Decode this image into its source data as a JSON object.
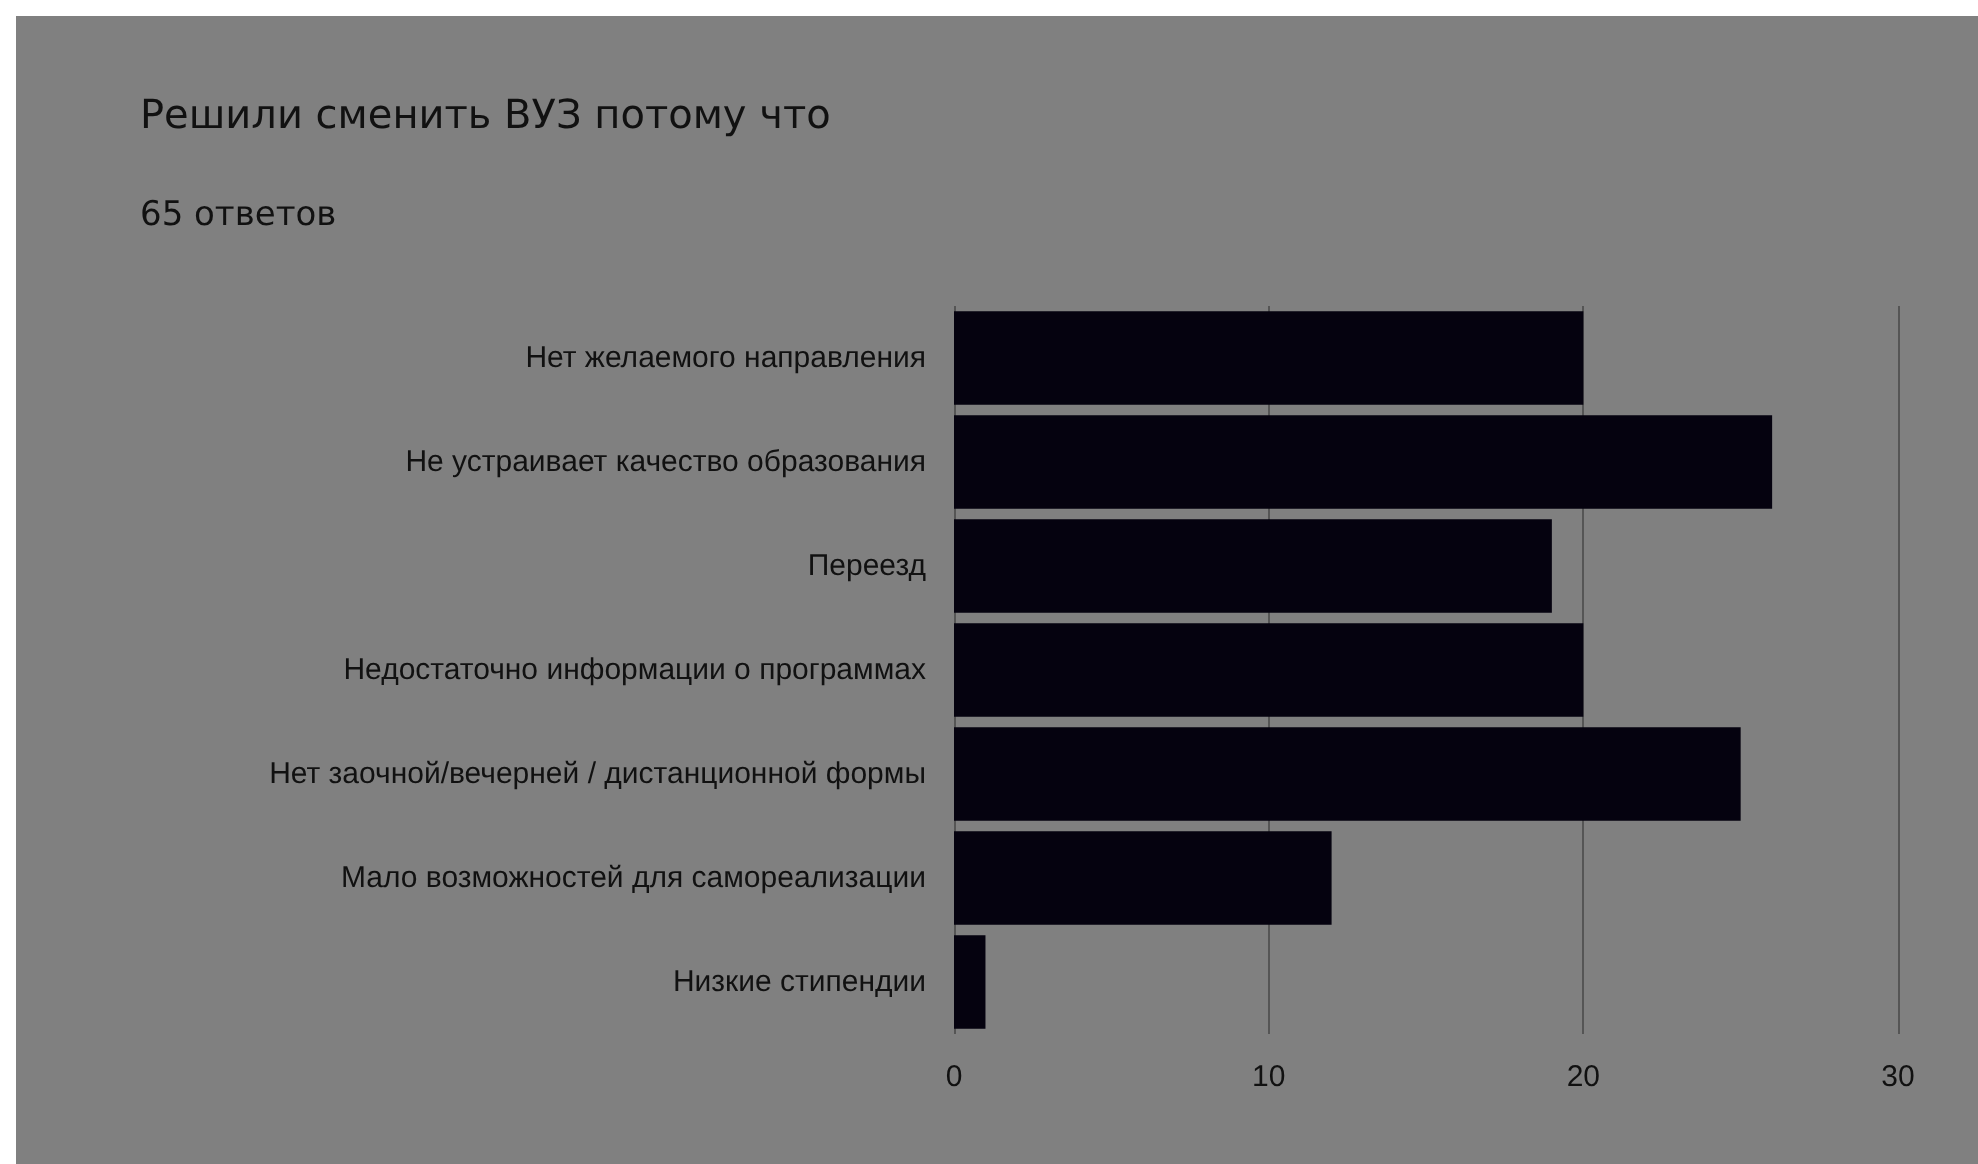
{
  "chart_data": {
    "type": "bar",
    "orientation": "horizontal",
    "title": "Решили сменить ВУЗ потому что",
    "subtitle": "65 ответов",
    "categories": [
      "Нет желаемого направления",
      "Не устраивает качество образования",
      "Переезд",
      "Недостаточно информации о программах",
      "Нет заочной/вечерней / дистанционной формы",
      "Мало возможностей для самореализации",
      "Низкие стипендии"
    ],
    "values": [
      20,
      26,
      19,
      20,
      25,
      12,
      1
    ],
    "color": "#05020f",
    "xlim": [
      0,
      30
    ],
    "xticks": [
      0,
      10,
      20,
      30
    ],
    "grid": "x"
  }
}
